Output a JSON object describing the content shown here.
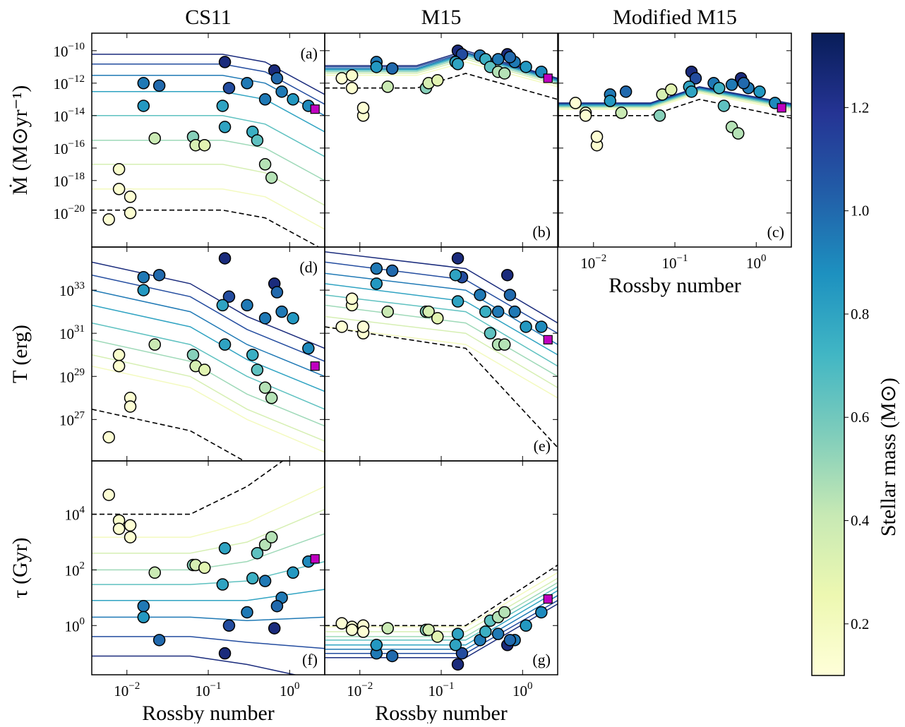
{
  "stars": {
    "rossby": [
      0.006,
      0.008,
      0.008,
      0.011,
      0.011,
      0.016,
      0.016,
      0.025,
      0.022,
      0.065,
      0.07,
      0.09,
      0.16,
      0.18,
      0.15,
      0.16,
      0.3,
      0.35,
      0.4,
      0.5,
      0.6,
      0.65,
      0.8,
      1.1,
      1.7,
      0.5,
      0.7
    ],
    "mass": [
      0.12,
      0.15,
      0.13,
      0.13,
      0.12,
      0.95,
      0.85,
      1.0,
      0.4,
      0.55,
      0.35,
      0.3,
      1.25,
      1.1,
      0.8,
      0.8,
      0.95,
      0.75,
      0.65,
      0.45,
      0.45,
      1.25,
      0.95,
      0.85,
      0.9,
      0.95,
      1.0
    ],
    "sun_rossby": 2.05,
    "sun_color": "#c000c0"
  },
  "chart_data": [
    {
      "type": "scatter",
      "title": "CS11",
      "label": "(a)",
      "label_loc": "upper right",
      "ylabel": "Ṁ (M⊙yr⁻¹)",
      "xlim": [
        0.0037,
        2.7
      ],
      "ylim": [
        8e-23,
        1.2e-09
      ],
      "log_x": true,
      "log_y": true,
      "yticks": [
        {
          "value": 1e-10,
          "label": "10",
          "exponent": "−10"
        },
        {
          "value": 1e-12,
          "label": "10",
          "exponent": "−12"
        },
        {
          "value": 1e-14,
          "label": "10",
          "exponent": "−14"
        },
        {
          "value": 1e-16,
          "label": "10",
          "exponent": "−16"
        },
        {
          "value": 1e-18,
          "label": "10",
          "exponent": "−18"
        },
        {
          "value": 1e-20,
          "label": "10",
          "exponent": "−20"
        }
      ],
      "values": [
        4e-21,
        5e-18,
        3e-19,
        1e-20,
        1e-19,
        1e-12,
        4e-14,
        7e-13,
        4e-16,
        5e-16,
        1.5e-16,
        1.5e-16,
        2e-11,
        5e-13,
        4e-14,
        2e-15,
        1e-12,
        1e-15,
        3e-16,
        1e-17,
        1.5e-18,
        6e-12,
        3e-13,
        1e-13,
        4e-14,
        1e-13,
        2e-12
      ],
      "sun": 2.5e-14,
      "model_x": [
        0.0037,
        0.15,
        0.5,
        2.7
      ],
      "models": [
        {
          "mass": 0.2,
          "values": [
            3e-19,
            3e-19,
            1e-19,
            1e-21
          ]
        },
        {
          "mass": 0.35,
          "values": [
            1e-17,
            1e-17,
            3e-18,
            3e-20
          ]
        },
        {
          "mass": 0.5,
          "values": [
            3e-16,
            3e-16,
            1e-16,
            1e-18
          ]
        },
        {
          "mass": 0.65,
          "values": [
            1e-14,
            1e-14,
            3e-15,
            3e-17
          ]
        },
        {
          "mass": 0.8,
          "values": [
            3e-13,
            3e-13,
            1e-13,
            1e-15
          ]
        },
        {
          "mass": 0.95,
          "values": [
            3e-12,
            3e-12,
            1e-12,
            1e-14
          ]
        },
        {
          "mass": 1.1,
          "values": [
            1.5e-11,
            1.5e-11,
            5e-12,
            5e-14
          ]
        },
        {
          "mass": 1.25,
          "values": [
            6e-11,
            6e-11,
            2e-11,
            2e-13
          ]
        }
      ],
      "dashed": [
        1.5e-20,
        1.5e-20,
        5e-21,
        5e-23
      ]
    },
    {
      "type": "scatter",
      "title": "M15",
      "label": "(b)",
      "label_loc": "lower right",
      "xlim": [
        0.0037,
        2.7
      ],
      "ylim": [
        8e-23,
        1.2e-09
      ],
      "log_x": true,
      "log_y": true,
      "values": [
        2e-12,
        3e-12,
        5e-13,
        1e-14,
        3e-14,
        2e-11,
        1e-11,
        8e-12,
        6e-13,
        5e-13,
        1e-12,
        1.5e-12,
        1e-10,
        6e-11,
        2e-11,
        1.5e-11,
        5e-11,
        3e-11,
        1e-11,
        5e-12,
        4e-12,
        6e-11,
        2e-11,
        1e-11,
        5e-12,
        3e-11,
        4e-11
      ],
      "sun": 2e-12,
      "model_x": [
        0.0037,
        0.05,
        0.2,
        2.7
      ],
      "models": [
        {
          "mass": 0.2,
          "values": [
            3e-12,
            3e-12,
            2e-11,
            6e-13
          ]
        },
        {
          "mass": 0.35,
          "values": [
            4e-12,
            4e-12,
            3e-11,
            8e-13
          ]
        },
        {
          "mass": 0.5,
          "values": [
            5e-12,
            5e-12,
            4e-11,
            1e-12
          ]
        },
        {
          "mass": 0.65,
          "values": [
            6e-12,
            6e-12,
            5e-11,
            1.2e-12
          ]
        },
        {
          "mass": 0.8,
          "values": [
            7e-12,
            7e-12,
            6e-11,
            1.4e-12
          ]
        },
        {
          "mass": 0.95,
          "values": [
            8e-12,
            8e-12,
            7e-11,
            1.6e-12
          ]
        },
        {
          "mass": 1.1,
          "values": [
            1e-11,
            1e-11,
            8e-11,
            1.8e-12
          ]
        },
        {
          "mass": 1.25,
          "values": [
            1.2e-11,
            1.2e-11,
            1e-10,
            2e-12
          ]
        }
      ],
      "dashed": [
        5e-13,
        5e-13,
        4e-12,
        1e-13
      ]
    },
    {
      "type": "scatter",
      "title": "Modified M15",
      "label": "(c)",
      "label_loc": "lower right",
      "xlabel": "Rossby number",
      "xlim": [
        0.0037,
        2.7
      ],
      "ylim": [
        8e-23,
        1.2e-09
      ],
      "log_x": true,
      "log_y": true,
      "xticks": [
        {
          "value": 0.01,
          "label": "10",
          "exponent": "−2"
        },
        {
          "value": 0.1,
          "label": "10",
          "exponent": "−1"
        },
        {
          "value": 1,
          "label": "10",
          "exponent": "0"
        }
      ],
      "values": [
        6e-14,
        1.5e-14,
        1e-14,
        1.5e-16,
        5e-16,
        2e-13,
        8e-14,
        3e-13,
        1.5e-14,
        1e-14,
        2e-13,
        4e-13,
        5e-12,
        2e-12,
        6e-13,
        3e-13,
        1e-12,
        5e-13,
        4e-14,
        2e-15,
        8e-16,
        2e-12,
        5e-13,
        3e-13,
        6e-14,
        8e-13,
        1e-12
      ],
      "sun": 3e-14,
      "model_x": [
        0.0037,
        0.05,
        0.2,
        2.7
      ],
      "models": [
        {
          "mass": 0.2,
          "values": [
            2.5e-14,
            2.5e-14,
            2.5e-13,
            2e-14
          ]
        },
        {
          "mass": 0.35,
          "values": [
            3e-14,
            3e-14,
            3e-13,
            2.5e-14
          ]
        },
        {
          "mass": 0.5,
          "values": [
            3.5e-14,
            3.5e-14,
            3.5e-13,
            3e-14
          ]
        },
        {
          "mass": 0.65,
          "values": [
            4e-14,
            4e-14,
            4e-13,
            3.5e-14
          ]
        },
        {
          "mass": 0.8,
          "values": [
            4.5e-14,
            4.5e-14,
            4.5e-13,
            4e-14
          ]
        },
        {
          "mass": 0.95,
          "values": [
            5e-14,
            5e-14,
            5e-13,
            4.5e-14
          ]
        },
        {
          "mass": 1.1,
          "values": [
            5.5e-14,
            5.5e-14,
            5.5e-13,
            5e-14
          ]
        },
        {
          "mass": 1.25,
          "values": [
            6e-14,
            6e-14,
            6e-13,
            5.5e-14
          ]
        }
      ],
      "dashed": [
        1e-14,
        1e-14,
        1e-13,
        7e-15
      ]
    },
    {
      "type": "scatter",
      "label": "(d)",
      "label_loc": "upper right",
      "ylabel": "T (erg)",
      "xlim": [
        0.0037,
        2.7
      ],
      "ylim": [
        1.2e+25,
        1e+35
      ],
      "log_x": true,
      "log_y": true,
      "yticks": [
        {
          "value": 1e+33,
          "label": "10",
          "exponent": "33"
        },
        {
          "value": 1e+31,
          "label": "10",
          "exponent": "31"
        },
        {
          "value": 1e+29,
          "label": "10",
          "exponent": "29"
        },
        {
          "value": 1e+27,
          "label": "10",
          "exponent": "27"
        }
      ],
      "values": [
        1.5e+26,
        1e+30,
        3e+29,
        1e+28,
        4e+27,
        4e+33,
        1e+33,
        5e+33,
        3e+30,
        1e+30,
        3e+29,
        2e+29,
        3e+34,
        5e+32,
        2e+32,
        3e+30,
        2e+32,
        1e+30,
        2e+29,
        3e+28,
        1e+28,
        2e+33,
        1e+32,
        5e+31,
        2e+30,
        5e+31,
        8e+32
      ],
      "sun": 3e+29,
      "model_x": [
        0.0037,
        0.06,
        0.3,
        2.7
      ],
      "models": [
        {
          "mass": 0.2,
          "values": [
            3e+29,
            3e+28,
            1e+27,
            3e+25
          ]
        },
        {
          "mass": 0.35,
          "values": [
            1e+30,
            1e+29,
            3e+27,
            1e+26
          ]
        },
        {
          "mass": 0.5,
          "values": [
            5e+30,
            5e+29,
            1.5e+28,
            5e+26
          ]
        },
        {
          "mass": 0.65,
          "values": [
            3e+31,
            3e+30,
            1e+29,
            3e+27
          ]
        },
        {
          "mass": 0.8,
          "values": [
            2e+32,
            2e+31,
            6e+29,
            2e+28
          ]
        },
        {
          "mass": 0.95,
          "values": [
            1e+33,
            1e+32,
            3e+30,
            1e+29
          ]
        },
        {
          "mass": 1.1,
          "values": [
            5e+33,
            5e+32,
            1.5e+31,
            5e+29
          ]
        },
        {
          "mass": 1.25,
          "values": [
            2e+34,
            2e+33,
            6e+31,
            2e+30
          ]
        }
      ],
      "dashed": [
        3e+27,
        3e+26,
        1e+25,
        3e+22
      ]
    },
    {
      "type": "scatter",
      "label": "(e)",
      "label_loc": "lower right",
      "xlim": [
        0.0037,
        2.7
      ],
      "ylim": [
        1.2e+25,
        1e+35
      ],
      "log_x": true,
      "log_y": true,
      "values": [
        2e+31,
        2e+32,
        4e+32,
        1e+31,
        2e+31,
        1e+34,
        2e+33,
        8e+33,
        1e+32,
        1e+32,
        1e+32,
        5e+31,
        3e+34,
        4e+33,
        5e+33,
        3e+32,
        6e+32,
        1e+32,
        1e+31,
        3e+30,
        3e+30,
        5e+33,
        1e+32,
        2e+31,
        2e+31,
        1e+32,
        6e+32
      ],
      "sun": 5e+30,
      "model_x": [
        0.0037,
        0.2,
        2.7
      ],
      "models": [
        {
          "mass": 0.2,
          "values": [
            2e+31,
            3e+30,
            1e+28
          ]
        },
        {
          "mass": 0.35,
          "values": [
            6e+31,
            1e+31,
            3e+28
          ]
        },
        {
          "mass": 0.5,
          "values": [
            2e+32,
            3e+31,
            1e+29
          ]
        },
        {
          "mass": 0.65,
          "values": [
            6e+32,
            1e+32,
            3e+29
          ]
        },
        {
          "mass": 0.8,
          "values": [
            2e+33,
            3e+32,
            1e+30
          ]
        },
        {
          "mass": 0.95,
          "values": [
            6e+33,
            1e+33,
            3e+30
          ]
        },
        {
          "mass": 1.1,
          "values": [
            2e+34,
            3e+33,
            1e+31
          ]
        },
        {
          "mass": 1.25,
          "values": [
            6e+34,
            1e+34,
            3e+31
          ]
        }
      ],
      "dashed": [
        2e+31,
        2e+30,
        5e+25
      ]
    },
    {
      "type": "scatter",
      "label": "(f)",
      "label_loc": "lower right",
      "ylabel": "τ (Gyr)",
      "xlabel": "Rossby number",
      "xlim": [
        0.0037,
        2.7
      ],
      "ylim": [
        0.017,
        830000.0
      ],
      "log_x": true,
      "log_y": true,
      "xticks": [
        {
          "value": 0.01,
          "label": "10",
          "exponent": "−2"
        },
        {
          "value": 0.1,
          "label": "10",
          "exponent": "−1"
        },
        {
          "value": 1,
          "label": "10",
          "exponent": "0"
        }
      ],
      "yticks": [
        {
          "value": 10000,
          "label": "10",
          "exponent": "4"
        },
        {
          "value": 100,
          "label": "10",
          "exponent": "2"
        },
        {
          "value": 1,
          "label": "10",
          "exponent": "0"
        }
      ],
      "values": [
        50000,
        6000,
        3000,
        1500,
        4000,
        5,
        2,
        0.3,
        80,
        150,
        150,
        120,
        0.1,
        1,
        30,
        600,
        3,
        50,
        400,
        800,
        1500,
        0.8,
        10,
        80,
        200,
        40,
        5
      ],
      "sun": 250,
      "model_x": [
        0.0037,
        0.06,
        0.3,
        2.7
      ],
      "models": [
        {
          "mass": 0.2,
          "values": [
            1500,
            1500,
            5000,
            100000
          ]
        },
        {
          "mass": 0.35,
          "values": [
            400,
            400,
            1000,
            15000
          ]
        },
        {
          "mass": 0.5,
          "values": [
            100,
            100,
            200,
            2000
          ]
        },
        {
          "mass": 0.65,
          "values": [
            30,
            30,
            40,
            200
          ]
        },
        {
          "mass": 0.8,
          "values": [
            8,
            8,
            8,
            20
          ]
        },
        {
          "mass": 0.95,
          "values": [
            2,
            2,
            1.5,
            2
          ]
        },
        {
          "mass": 1.1,
          "values": [
            0.4,
            0.4,
            0.25,
            0.15
          ]
        },
        {
          "mass": 1.25,
          "values": [
            0.08,
            0.08,
            0.04,
            0.01
          ]
        }
      ],
      "dashed": [
        10000,
        10000,
        100000,
        10000000
      ]
    },
    {
      "type": "scatter",
      "label": "(g)",
      "label_loc": "lower right",
      "xlabel": "Rossby number",
      "xlim": [
        0.0037,
        2.7
      ],
      "ylim": [
        0.017,
        830000.0
      ],
      "log_x": true,
      "log_y": true,
      "xticks": [
        {
          "value": 0.01,
          "label": "10",
          "exponent": "−2"
        },
        {
          "value": 0.1,
          "label": "10",
          "exponent": "−1"
        },
        {
          "value": 1,
          "label": "10",
          "exponent": "0"
        }
      ],
      "values": [
        1.2,
        0.9,
        0.7,
        1,
        0.6,
        0.1,
        0.2,
        0.08,
        0.8,
        0.7,
        0.7,
        0.4,
        0.04,
        0.1,
        0.2,
        0.5,
        0.3,
        0.6,
        1.5,
        2,
        3,
        0.2,
        0.3,
        1,
        3,
        0.5,
        0.3
      ],
      "sun": 9,
      "model_x": [
        0.0037,
        0.2,
        2.7
      ],
      "models": [
        {
          "mass": 0.2,
          "values": [
            0.9,
            0.9,
            80
          ]
        },
        {
          "mass": 0.35,
          "values": [
            0.6,
            0.6,
            50
          ]
        },
        {
          "mass": 0.5,
          "values": [
            0.4,
            0.4,
            35
          ]
        },
        {
          "mass": 0.65,
          "values": [
            0.3,
            0.3,
            25
          ]
        },
        {
          "mass": 0.8,
          "values": [
            0.2,
            0.2,
            18
          ]
        },
        {
          "mass": 0.95,
          "values": [
            0.14,
            0.14,
            12
          ]
        },
        {
          "mass": 1.1,
          "values": [
            0.1,
            0.1,
            8
          ]
        },
        {
          "mass": 1.25,
          "values": [
            0.07,
            0.07,
            6
          ]
        }
      ],
      "dashed": [
        1,
        1,
        150
      ]
    },
    {
      "type": "colorbar",
      "label": "Stellar mass (M⊙)",
      "ylim": [
        0.1,
        1.344
      ],
      "yticks": [
        0.2,
        0.4,
        0.6,
        0.8,
        {
          "value": 1.0,
          "label": "1.0"
        },
        1.2
      ],
      "colors": [
        "#ffffd9",
        "#edf8b1",
        "#c7e9b4",
        "#7fcdbb",
        "#41b6c4",
        "#1d91c0",
        "#225ea8",
        "#253494",
        "#081d58"
      ]
    }
  ]
}
